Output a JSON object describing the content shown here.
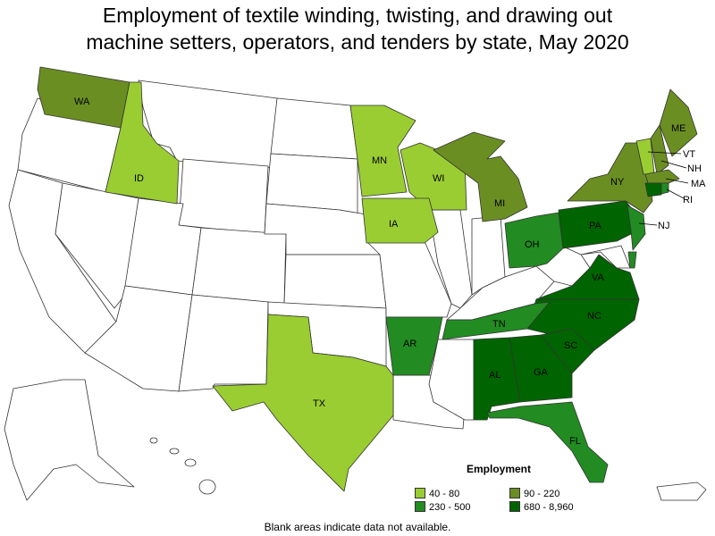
{
  "title_line1": "Employment of textile winding, twisting, and drawing out",
  "title_line2": "machine setters, operators, and tenders by state, May 2020",
  "legend": {
    "title": "Employment",
    "items": [
      {
        "label": "40 - 80",
        "color": "#9acd32"
      },
      {
        "label": "90 - 220",
        "color": "#6b8e23"
      },
      {
        "label": "230 - 500",
        "color": "#228b22"
      },
      {
        "label": "680 - 8,960",
        "color": "#006400"
      }
    ]
  },
  "footnote": "Blank areas indicate data not available.",
  "colors": {
    "no_data": "#ffffff",
    "border": "#333333"
  },
  "states": [
    {
      "abbr": "WA",
      "label": "WA",
      "range": "90 - 220"
    },
    {
      "abbr": "ID",
      "label": "ID",
      "range": "40 - 80"
    },
    {
      "abbr": "MN",
      "label": "MN",
      "range": "40 - 80"
    },
    {
      "abbr": "WI",
      "label": "WI",
      "range": "40 - 80"
    },
    {
      "abbr": "IA",
      "label": "IA",
      "range": "40 - 80"
    },
    {
      "abbr": "TX",
      "label": "TX",
      "range": "40 - 80"
    },
    {
      "abbr": "VT",
      "label": "VT",
      "range": "40 - 80"
    },
    {
      "abbr": "MI",
      "label": "MI",
      "range": "90 - 220"
    },
    {
      "abbr": "NY",
      "label": "NY",
      "range": "90 - 220"
    },
    {
      "abbr": "ME",
      "label": "ME",
      "range": "90 - 220"
    },
    {
      "abbr": "NH",
      "label": "NH",
      "range": "90 - 220"
    },
    {
      "abbr": "MA",
      "label": "MA",
      "range": "90 - 220"
    },
    {
      "abbr": "OH",
      "label": "OH",
      "range": "230 - 500"
    },
    {
      "abbr": "AR",
      "label": "AR",
      "range": "230 - 500"
    },
    {
      "abbr": "TN",
      "label": "TN",
      "range": "230 - 500"
    },
    {
      "abbr": "FL",
      "label": "FL",
      "range": "230 - 500"
    },
    {
      "abbr": "NJ",
      "label": "NJ",
      "range": "230 - 500"
    },
    {
      "abbr": "RI",
      "label": "RI",
      "range": "230 - 500"
    },
    {
      "abbr": "DE",
      "label": "",
      "range": "230 - 500"
    },
    {
      "abbr": "PA",
      "label": "PA",
      "range": "680 - 8,960"
    },
    {
      "abbr": "VA",
      "label": "VA",
      "range": "680 - 8,960"
    },
    {
      "abbr": "NC",
      "label": "NC",
      "range": "680 - 8,960"
    },
    {
      "abbr": "SC",
      "label": "SC",
      "range": "680 - 8,960"
    },
    {
      "abbr": "GA",
      "label": "GA",
      "range": "680 - 8,960"
    },
    {
      "abbr": "AL",
      "label": "AL",
      "range": "680 - 8,960"
    },
    {
      "abbr": "CT",
      "label": "",
      "range": "680 - 8,960"
    }
  ]
}
